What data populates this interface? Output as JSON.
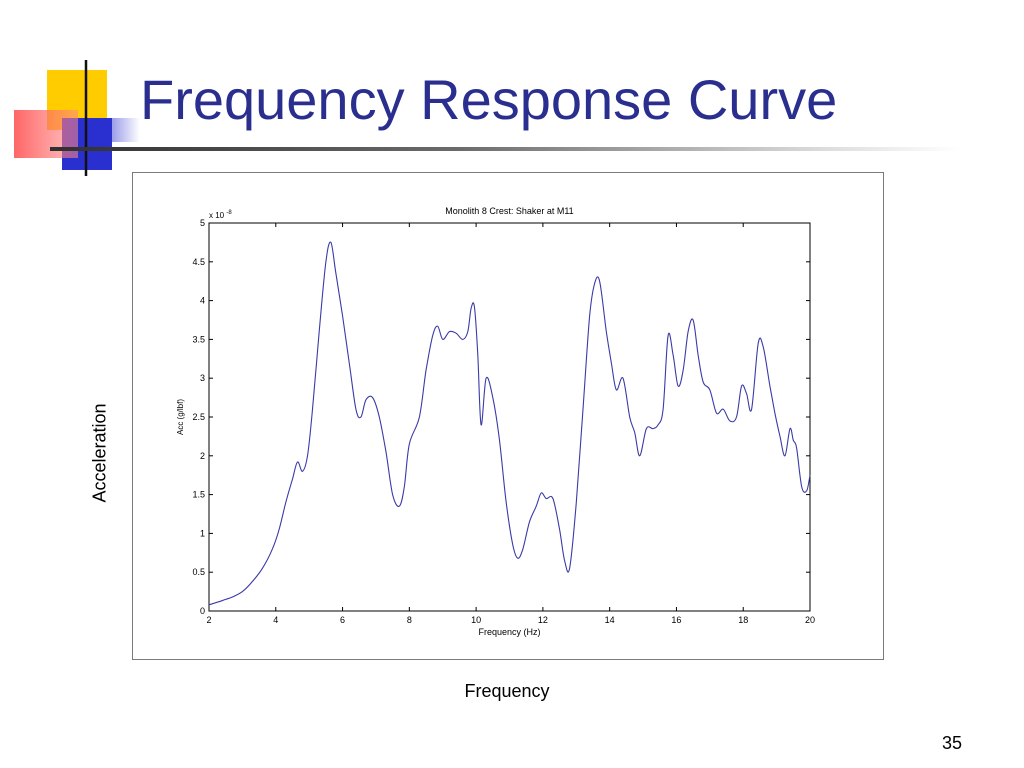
{
  "slide": {
    "title": "Frequency Response Curve",
    "side_ylabel": "Acceleration",
    "side_xlabel": "Frequency",
    "number": "35"
  },
  "colors": {
    "title": "#2a2f8f",
    "line": "#3a3aa8",
    "logo_yellow": "#ffcc00",
    "logo_blue": "#2a2fd0",
    "logo_red": "#ff3b3b"
  },
  "chart_data": {
    "type": "line",
    "title": "Monolith 8 Crest: Shaker at M11",
    "xlabel": "Frequency (Hz)",
    "ylabel": "Acc (g/lbf)",
    "y_multiplier_base": "x 10",
    "y_multiplier_exp": "-8",
    "xlim": [
      2,
      20
    ],
    "ylim": [
      0,
      5
    ],
    "xticks": [
      2,
      4,
      6,
      8,
      10,
      12,
      14,
      16,
      18,
      20
    ],
    "yticks": [
      0,
      0.5,
      1,
      1.5,
      2,
      2.5,
      3,
      3.5,
      4,
      4.5,
      5
    ],
    "ytick_labels": [
      "0",
      "0.5",
      "1",
      "1.5",
      "2",
      "2.5",
      "3",
      "3.5",
      "4",
      "4.5",
      "5"
    ],
    "grid": false,
    "series": [
      {
        "x": [
          2,
          2.3,
          2.5,
          2.7,
          3,
          3.3,
          3.6,
          3.9,
          4.1,
          4.3,
          4.5,
          4.65,
          4.8,
          4.95,
          5.1,
          5.3,
          5.5,
          5.65,
          5.8,
          6,
          6.2,
          6.4,
          6.55,
          6.7,
          6.9,
          7.1,
          7.3,
          7.5,
          7.7,
          7.85,
          8,
          8.3,
          8.5,
          8.7,
          8.85,
          9,
          9.2,
          9.4,
          9.6,
          9.75,
          9.85,
          9.95,
          10.05,
          10.15,
          10.3,
          10.5,
          10.7,
          10.9,
          11.1,
          11.25,
          11.4,
          11.6,
          11.8,
          11.95,
          12.1,
          12.3,
          12.5,
          12.65,
          12.8,
          13,
          13.2,
          13.4,
          13.55,
          13.7,
          13.9,
          14.05,
          14.2,
          14.4,
          14.6,
          14.75,
          14.9,
          15.1,
          15.3,
          15.45,
          15.6,
          15.75,
          15.9,
          16.05,
          16.2,
          16.35,
          16.5,
          16.65,
          16.8,
          17,
          17.2,
          17.4,
          17.6,
          17.8,
          17.95,
          18.1,
          18.25,
          18.45,
          18.6,
          18.8,
          18.95,
          19.1,
          19.25,
          19.4,
          19.5,
          19.6,
          19.75,
          19.9,
          20
        ],
        "y": [
          0.08,
          0.12,
          0.15,
          0.18,
          0.25,
          0.38,
          0.55,
          0.8,
          1.05,
          1.4,
          1.7,
          1.92,
          1.8,
          2.0,
          2.6,
          3.6,
          4.5,
          4.75,
          4.35,
          3.8,
          3.2,
          2.6,
          2.5,
          2.72,
          2.75,
          2.5,
          2.05,
          1.5,
          1.35,
          1.6,
          2.15,
          2.5,
          3.1,
          3.55,
          3.67,
          3.5,
          3.6,
          3.58,
          3.5,
          3.6,
          3.9,
          3.92,
          3.3,
          2.4,
          3.0,
          2.75,
          2.2,
          1.4,
          0.85,
          0.68,
          0.8,
          1.15,
          1.35,
          1.52,
          1.45,
          1.45,
          1.05,
          0.65,
          0.55,
          1.4,
          2.6,
          3.8,
          4.22,
          4.25,
          3.6,
          3.2,
          2.85,
          3.0,
          2.5,
          2.3,
          2.0,
          2.35,
          2.35,
          2.4,
          2.6,
          3.55,
          3.3,
          2.9,
          3.1,
          3.6,
          3.75,
          3.3,
          2.95,
          2.85,
          2.55,
          2.6,
          2.45,
          2.5,
          2.9,
          2.8,
          2.6,
          3.45,
          3.4,
          2.9,
          2.55,
          2.25,
          2.0,
          2.35,
          2.2,
          2.1,
          1.6,
          1.55,
          1.75
        ]
      }
    ]
  }
}
